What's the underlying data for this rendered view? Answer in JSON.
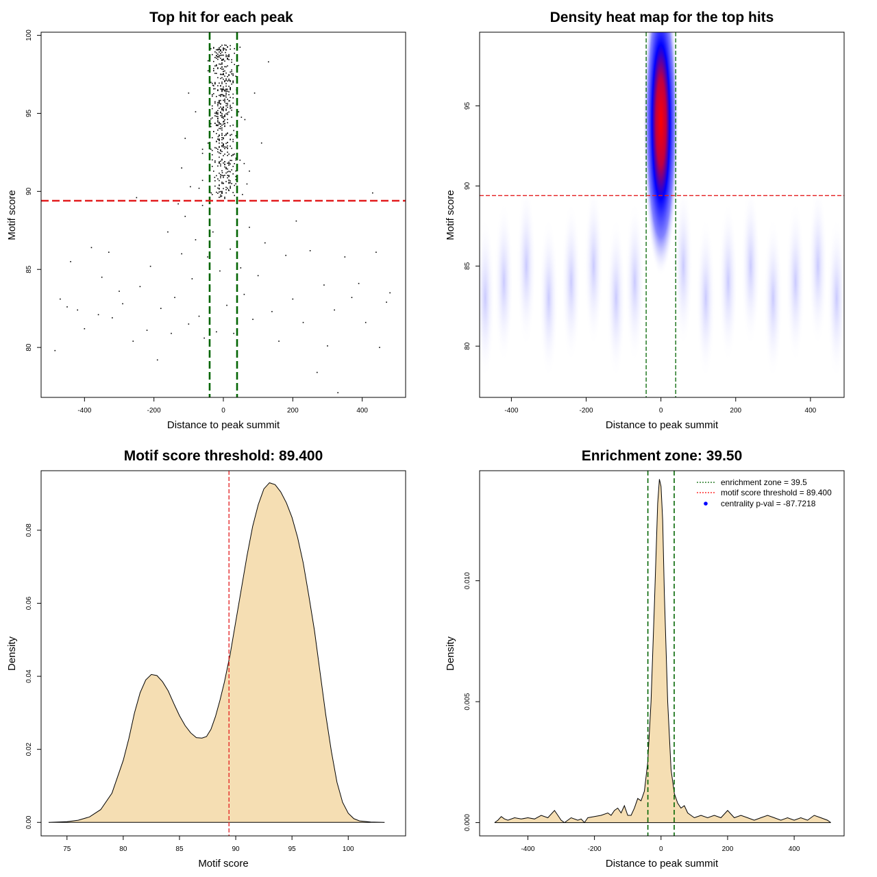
{
  "chart_data": [
    {
      "type": "scatter",
      "title": "Top hit for each peak",
      "xlabel": "Distance to peak summit",
      "ylabel": "Motif score",
      "xlim": [
        -525,
        525
      ],
      "ylim": [
        76.8,
        100.2
      ],
      "xticks": [
        -400,
        -200,
        0,
        200,
        400
      ],
      "yticks": [
        80,
        85,
        90,
        95,
        100
      ],
      "vlines": [
        -39.5,
        39.5
      ],
      "hline": 89.4,
      "points": [
        [
          -485,
          79.8
        ],
        [
          -470,
          83.1
        ],
        [
          -450,
          82.6
        ],
        [
          -440,
          85.5
        ],
        [
          -420,
          82.4
        ],
        [
          -400,
          81.2
        ],
        [
          -380,
          86.4
        ],
        [
          -360,
          82.1
        ],
        [
          -350,
          84.5
        ],
        [
          -330,
          86.1
        ],
        [
          -320,
          81.9
        ],
        [
          -300,
          83.6
        ],
        [
          -290,
          82.8
        ],
        [
          -260,
          80.4
        ],
        [
          -250,
          89.6
        ],
        [
          -240,
          83.9
        ],
        [
          -220,
          81.1
        ],
        [
          -210,
          85.2
        ],
        [
          -190,
          79.2
        ],
        [
          -180,
          82.5
        ],
        [
          -160,
          87.4
        ],
        [
          -150,
          80.9
        ],
        [
          -140,
          83.2
        ],
        [
          -120,
          86.0
        ],
        [
          -110,
          88.4
        ],
        [
          -100,
          81.5
        ],
        [
          -90,
          84.4
        ],
        [
          -80,
          86.9
        ],
        [
          -70,
          82.0
        ],
        [
          -60,
          89.1
        ],
        [
          -55,
          80.6
        ],
        [
          -45,
          85.8
        ],
        [
          -30,
          87.4
        ],
        [
          -20,
          81.0
        ],
        [
          -10,
          84.9
        ],
        [
          10,
          82.7
        ],
        [
          20,
          86.3
        ],
        [
          30,
          80.9
        ],
        [
          50,
          85.1
        ],
        [
          60,
          83.4
        ],
        [
          75,
          87.7
        ],
        [
          85,
          81.8
        ],
        [
          100,
          84.6
        ],
        [
          120,
          86.7
        ],
        [
          140,
          82.3
        ],
        [
          160,
          80.4
        ],
        [
          180,
          85.9
        ],
        [
          200,
          83.1
        ],
        [
          210,
          88.1
        ],
        [
          230,
          81.6
        ],
        [
          250,
          86.2
        ],
        [
          270,
          78.4
        ],
        [
          290,
          84.0
        ],
        [
          300,
          80.1
        ],
        [
          320,
          82.4
        ],
        [
          330,
          77.1
        ],
        [
          350,
          85.8
        ],
        [
          370,
          83.2
        ],
        [
          390,
          84.1
        ],
        [
          410,
          81.6
        ],
        [
          430,
          89.9
        ],
        [
          440,
          86.1
        ],
        [
          450,
          80.0
        ],
        [
          470,
          82.9
        ],
        [
          480,
          83.5
        ],
        [
          -130,
          89.2
        ],
        [
          -120,
          91.5
        ],
        [
          -110,
          93.4
        ],
        [
          -100,
          96.3
        ],
        [
          -80,
          95.1
        ],
        [
          -70,
          90.2
        ],
        [
          -60,
          92.7
        ],
        [
          -40,
          94.9
        ],
        [
          -30,
          96.8
        ],
        [
          -25,
          90.9
        ],
        [
          -15,
          93.5
        ],
        [
          -8,
          97.5
        ],
        [
          -3,
          91.2
        ],
        [
          2,
          94.5
        ],
        [
          6,
          98.9
        ],
        [
          12,
          92.3
        ],
        [
          18,
          95.8
        ],
        [
          24,
          90.5
        ],
        [
          30,
          93.9
        ],
        [
          38,
          96.5
        ],
        [
          48,
          92.0
        ],
        [
          62,
          94.6
        ],
        [
          75,
          91.3
        ],
        [
          90,
          96.3
        ],
        [
          110,
          93.1
        ],
        [
          130,
          98.3
        ],
        [
          -35,
          89.9
        ],
        [
          -5,
          89.7
        ],
        [
          15,
          90.1
        ],
        [
          55,
          89.8
        ],
        [
          -95,
          90.3
        ]
      ],
      "cluster": {
        "x_center": 0,
        "x_sd": 18,
        "y_min": 89.5,
        "y_max": 99.4,
        "count": 500
      }
    },
    {
      "type": "heatmap",
      "title": "Density heat map for the top hits",
      "xlabel": "Distance to peak summit",
      "ylabel": "Motif score",
      "xlim": [
        -485,
        490
      ],
      "ylim": [
        76.8,
        99.6
      ],
      "xticks": [
        -400,
        -200,
        0,
        200,
        400
      ],
      "yticks": [
        80,
        85,
        90,
        95
      ],
      "vlines": [
        -39.5,
        39.5
      ],
      "hline": 89.4,
      "hotspot": {
        "x": 0,
        "y": 94.0
      },
      "colors": {
        "low": "#ffffff",
        "mid": "#0000ff",
        "high": "#ff0000"
      }
    },
    {
      "type": "area",
      "title": "Motif score threshold: 89.400",
      "xlabel": "Motif score",
      "ylabel": "Density",
      "xlim": [
        72.7,
        105.1
      ],
      "ylim": [
        -0.0037,
        0.0963
      ],
      "xticks": [
        75,
        80,
        85,
        90,
        95,
        100
      ],
      "yticks": [
        0.0,
        0.02,
        0.04,
        0.06,
        0.08
      ],
      "ytick_labels": [
        "0.00",
        "0.02",
        "0.04",
        "0.06",
        "0.08"
      ],
      "vline": 89.4,
      "x": [
        73.4,
        75,
        76,
        77,
        78,
        79,
        80,
        80.5,
        81,
        81.5,
        82,
        82.5,
        83,
        83.5,
        84,
        84.5,
        85,
        85.5,
        86,
        86.5,
        87,
        87.4,
        87.8,
        88.2,
        88.6,
        89,
        89.5,
        90,
        90.5,
        91,
        91.5,
        92,
        92.5,
        93,
        93.5,
        94,
        94.5,
        95,
        95.5,
        96,
        96.5,
        97,
        97.5,
        98,
        98.5,
        99,
        99.5,
        100,
        100.5,
        101,
        102,
        103.2
      ],
      "y": [
        0.0,
        0.0002,
        0.0006,
        0.0015,
        0.0035,
        0.008,
        0.017,
        0.023,
        0.03,
        0.0355,
        0.039,
        0.0405,
        0.0402,
        0.0385,
        0.036,
        0.0325,
        0.0292,
        0.0265,
        0.0245,
        0.0232,
        0.0231,
        0.0235,
        0.0255,
        0.029,
        0.0335,
        0.0385,
        0.046,
        0.055,
        0.064,
        0.073,
        0.081,
        0.087,
        0.0913,
        0.093,
        0.0925,
        0.0905,
        0.0875,
        0.0835,
        0.078,
        0.071,
        0.062,
        0.0525,
        0.041,
        0.0295,
        0.0195,
        0.011,
        0.0055,
        0.0025,
        0.001,
        0.0004,
        0.0001,
        0.0
      ]
    },
    {
      "type": "area",
      "title": "Enrichment zone: 39.50",
      "xlabel": "Distance to peak summit",
      "ylabel": "Density",
      "xlim": [
        -545,
        550
      ],
      "ylim": [
        -0.00055,
        0.01455
      ],
      "xticks": [
        -400,
        -200,
        0,
        200,
        400
      ],
      "yticks": [
        0.0,
        0.005,
        0.01
      ],
      "ytick_labels": [
        "0.000",
        "0.005",
        "0.010"
      ],
      "vlines": [
        -39.5,
        39.5
      ],
      "x": [
        -500,
        -490,
        -480,
        -470,
        -460,
        -440,
        -420,
        -400,
        -380,
        -360,
        -340,
        -320,
        -310,
        -300,
        -290,
        -270,
        -250,
        -240,
        -230,
        -220,
        -200,
        -180,
        -160,
        -150,
        -140,
        -130,
        -120,
        -110,
        -100,
        -90,
        -80,
        -70,
        -60,
        -50,
        -40,
        -30,
        -20,
        -10,
        -5,
        0,
        5,
        10,
        20,
        30,
        40,
        50,
        60,
        70,
        80,
        90,
        100,
        120,
        140,
        160,
        180,
        200,
        220,
        240,
        260,
        280,
        300,
        320,
        340,
        360,
        380,
        400,
        420,
        440,
        460,
        480,
        500,
        510
      ],
      "y": [
        0.0,
        0.0001,
        0.00025,
        0.00015,
        0.0001,
        0.0002,
        0.00015,
        0.0002,
        0.00015,
        0.0003,
        0.0002,
        0.0005,
        0.0003,
        0.0001,
        0.0,
        0.0002,
        0.0001,
        0.00015,
        0.0,
        0.0002,
        0.00025,
        0.0003,
        0.0004,
        0.0003,
        0.0005,
        0.0006,
        0.0004,
        0.0007,
        0.0003,
        0.0003,
        0.0006,
        0.001,
        0.0009,
        0.0013,
        0.0025,
        0.005,
        0.009,
        0.0132,
        0.0142,
        0.0139,
        0.0125,
        0.0095,
        0.005,
        0.0022,
        0.0012,
        0.0008,
        0.0006,
        0.0007,
        0.0004,
        0.0003,
        0.0002,
        0.0003,
        0.0002,
        0.0003,
        0.0002,
        0.0005,
        0.0002,
        0.0003,
        0.0002,
        0.0001,
        0.0002,
        0.0003,
        0.0002,
        0.0001,
        0.0002,
        0.0001,
        0.0002,
        0.0001,
        0.0003,
        0.0002,
        0.0001,
        0.0
      ],
      "legend": [
        {
          "label": "enrichment zone = 39.5",
          "style": "dotted",
          "color": "#006400"
        },
        {
          "label": "motif score threshold = 89.400",
          "style": "dotted",
          "color": "#ff0000"
        },
        {
          "label": "centrality p-val = -87.7218",
          "style": "point",
          "color": "#0000ff"
        }
      ]
    }
  ],
  "colors": {
    "green_line": "#006400",
    "red_line": "#e31a1c",
    "fill": "#f5deb3",
    "point": "#000000"
  }
}
